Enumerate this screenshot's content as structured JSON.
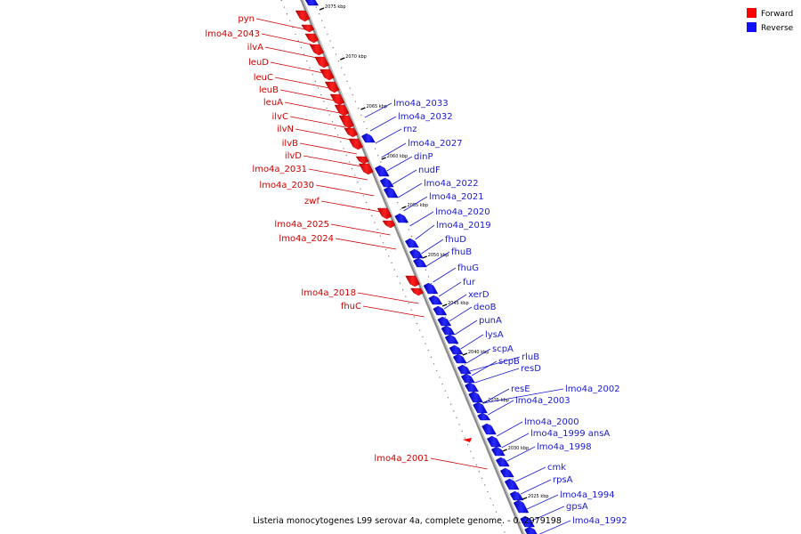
{
  "legend": {
    "forward": {
      "label": "Forward",
      "color": "#ff0000"
    },
    "reverse": {
      "label": "Reverse",
      "color": "#1010ff"
    }
  },
  "caption": "Listeria monocytogenes L99 serovar 4a, complete genome. - 0..2979198",
  "ticks": [
    "2075 kbp",
    "2070 kbp",
    "2065 kbp",
    "2060 kbp",
    "2055 kbp",
    "2050 kbp",
    "2045 kbp",
    "2040 kbp",
    "2035 kbp",
    "2030 kbp",
    "2025 kbp"
  ],
  "forward_genes": [
    "pyn",
    "lmo4a_2043",
    "ilvA",
    "leuD",
    "leuC",
    "leuB",
    "leuA",
    "ilvC",
    "ilvN",
    "ilvB",
    "ilvD",
    "lmo4a_2031",
    "lmo4a_2030",
    "zwf",
    "lmo4a_2025",
    "lmo4a_2024",
    "lmo4a_2018",
    "fhuC",
    "lmo4a_2001"
  ],
  "reverse_genes": [
    "lmo4a_2033",
    "lmo4a_2032",
    "rnz",
    "lmo4a_2027",
    "dinP",
    "nudF",
    "lmo4a_2022",
    "lmo4a_2021",
    "lmo4a_2020",
    "lmo4a_2019",
    "fhuD",
    "fhuB",
    "fhuG",
    "fur",
    "xerD",
    "deoB",
    "punA",
    "lysA",
    "scpA",
    "rluB",
    "scpB",
    "resD",
    "resE",
    "lmo4a_2002",
    "lmo4a_2003",
    "lmo4a_2000",
    "lmo4a_1999 ansA",
    "lmo4a_1998",
    "cmk",
    "rpsA",
    "lmo4a_1994",
    "gpsA",
    "lmo4a_1992"
  ]
}
